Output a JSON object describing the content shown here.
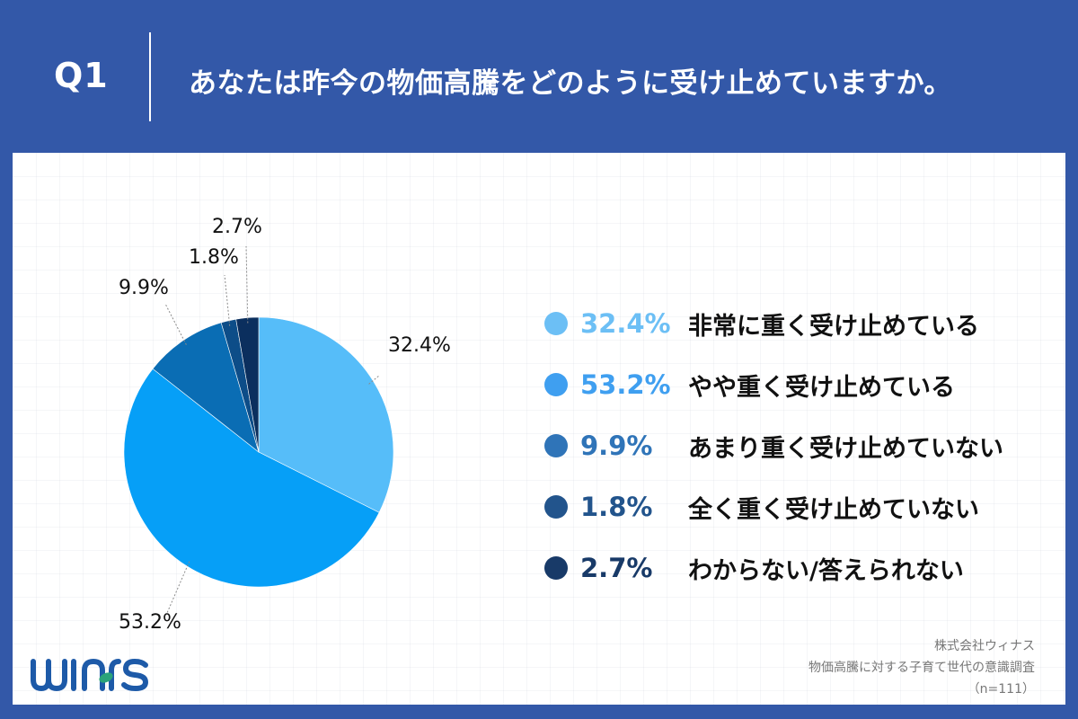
{
  "header": {
    "question_label": "Q1",
    "title": "あなたは昨今の物価高騰をどのように受け止めていますか。"
  },
  "colors": {
    "background": "#3358a8",
    "panel": "#ffffff"
  },
  "chart_data": {
    "type": "pie",
    "title": "あなたは昨今の物価高騰をどのように受け止めていますか。",
    "categories": [
      "非常に重く受け止めている",
      "やや重く受け止めている",
      "あまり重く受け止めていない",
      "全く重く受け止めていない",
      "わからない/答えられない"
    ],
    "values": [
      32.4,
      53.2,
      9.9,
      1.8,
      2.7
    ],
    "unit": "%",
    "colors": [
      "#56bdf9",
      "#069ff7",
      "#0a6db4",
      "#0d4d88",
      "#0b2f5e"
    ],
    "start_angle": "12 o'clock",
    "direction": "clockwise",
    "legend_position": "right",
    "n": 111
  },
  "pie_labels": [
    "32.4%",
    "53.2%",
    "9.9%",
    "1.8%",
    "2.7%"
  ],
  "legend": {
    "items": [
      {
        "pct": "32.4%",
        "label": "非常に重く受け止めている",
        "color": "#6cbff5"
      },
      {
        "pct": "53.2%",
        "label": "やや重く受け止めている",
        "color": "#3f9ff0"
      },
      {
        "pct": "9.9%",
        "label": "あまり重く受け止めていない",
        "color": "#2f74b8"
      },
      {
        "pct": "1.8%",
        "label": "全く重く受け止めていない",
        "color": "#22548c"
      },
      {
        "pct": "2.7%",
        "label": "わからない/答えられない",
        "color": "#183a68"
      }
    ]
  },
  "footer": {
    "company": "株式会社ウィナス",
    "survey": "物価高騰に対する子育て世代の意識調査",
    "sample": "（n=111）"
  },
  "logo": {
    "text": "winas",
    "color": "#1d5aa8",
    "accent_color": "#2aa37a"
  }
}
